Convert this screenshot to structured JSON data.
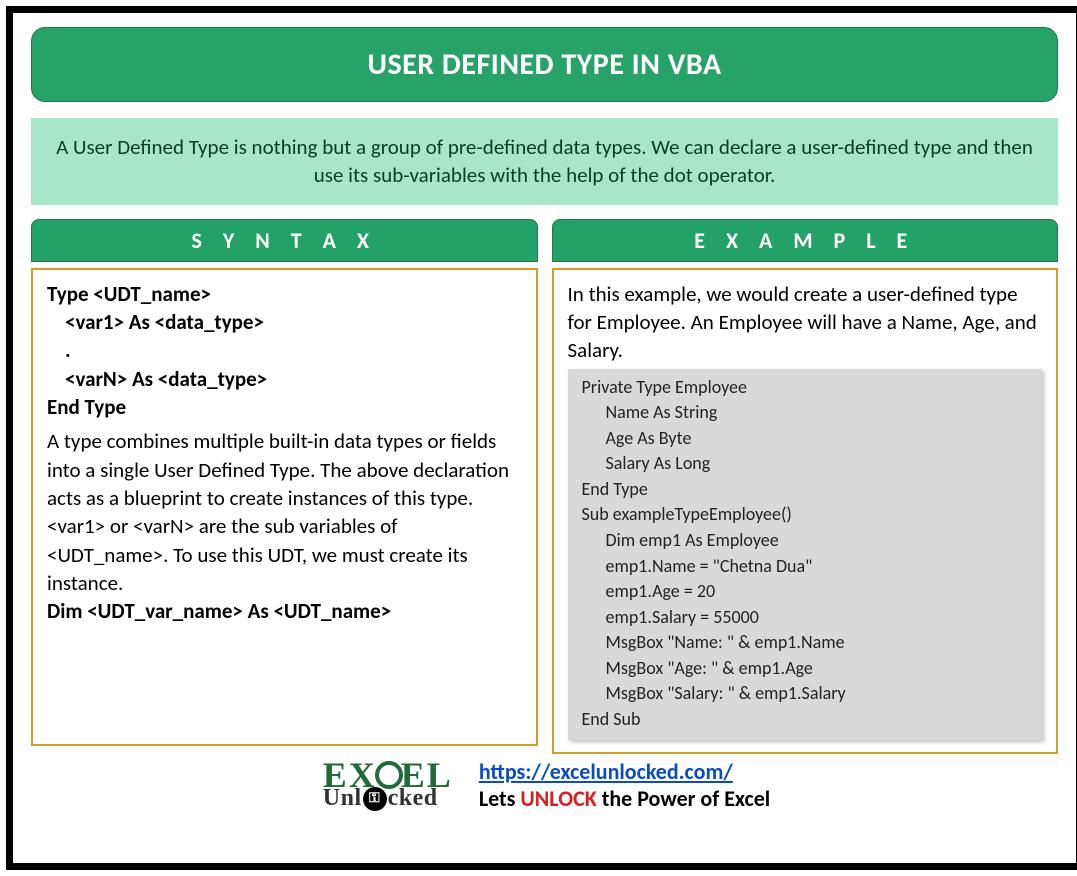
{
  "colors": {
    "header_bg": "#27a369",
    "header_border": "#1a7a4e",
    "desc_bg": "#a7e6c9",
    "desc_text": "#093b26",
    "section_header_bg": "#23a168",
    "body_border": "#c9a227",
    "code_panel_bg": "#d9d9d9",
    "link": "#0b4cc4",
    "unlock": "#d81e1e",
    "logo_green": "#1f6b3a",
    "frame": "#000000",
    "page_bg": "#ffffff"
  },
  "title": "USER DEFINED TYPE IN VBA",
  "description": "A User Defined Type is nothing but a group of pre-defined data types. We can declare a user-defined type and then use its sub-variables with the help of the dot operator.",
  "syntax": {
    "heading": "S Y N T A X",
    "lines": {
      "l1": "Type <UDT_name>",
      "l2": "<var1> As <data_type>",
      "l3": ".",
      "l4": "<varN> As <data_type>",
      "l5": "End Type"
    },
    "explain": "A type combines multiple built-in data types or fields into a single User Defined Type. The above declaration acts as a blueprint to create instances of this type. <var1> or <varN> are the sub variables of <UDT_name>. To use this UDT, we must create its instance.",
    "dim_line": "Dim <UDT_var_name> As <UDT_name>"
  },
  "example": {
    "heading": "E X A M P L E",
    "intro": "In this example, we would create a user-defined type for Employee. An Employee will have a Name, Age, and Salary.",
    "code": {
      "c1": "Private Type Employee",
      "c2": "Name As String",
      "c3": "Age As Byte",
      "c4": "Salary As Long",
      "c5": "End Type",
      "c6": "Sub exampleTypeEmployee()",
      "c7": "Dim emp1 As Employee",
      "c8": "emp1.Name = \"Chetna Dua\"",
      "c9": "emp1.Age = 20",
      "c10": "emp1.Salary = 55000",
      "c11": "MsgBox \"Name: \" & emp1.Name",
      "c12": "MsgBox \"Age: \" & emp1.Age",
      "c13": "MsgBox \"Salary: \" & emp1.Salary",
      "c14": "End Sub"
    }
  },
  "footer": {
    "logo_top_left": "EX",
    "logo_top_right": "EL",
    "logo_bottom_left": "Unl",
    "logo_bottom_right": "cked",
    "url": "https://excelunlocked.com/",
    "tagline_pre": "Lets ",
    "tagline_unlock": "UNLOCK",
    "tagline_post": " the Power of Excel"
  }
}
